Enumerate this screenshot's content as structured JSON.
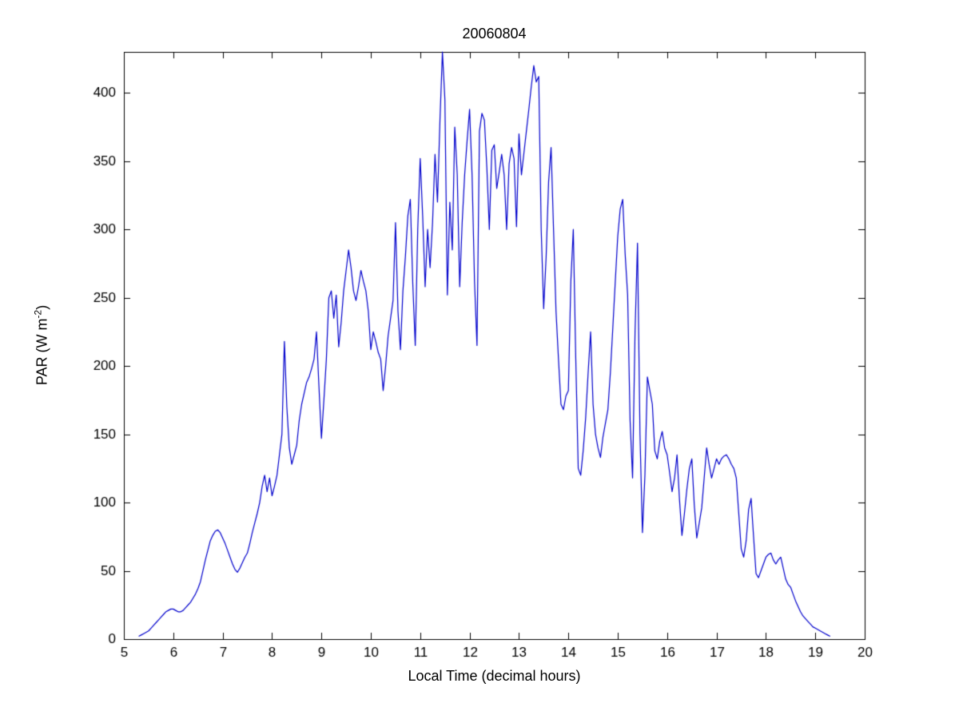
{
  "chart_data": {
    "type": "line",
    "title": "20060804",
    "xlabel": "Local Time (decimal hours)",
    "ylabel": "PAR (W m⁻²)",
    "ylabel_parts": {
      "base": "PAR (W m",
      "sup": "-2",
      "close": ")"
    },
    "xlim": [
      5,
      20
    ],
    "ylim": [
      0,
      430
    ],
    "xticks": [
      5,
      6,
      7,
      8,
      9,
      10,
      11,
      12,
      13,
      14,
      15,
      16,
      17,
      18,
      19,
      20
    ],
    "yticks": [
      0,
      50,
      100,
      150,
      200,
      250,
      300,
      350,
      400
    ],
    "grid": false,
    "legend": null,
    "line_color": "#0000CC",
    "axis_color": "#000000",
    "background_color": "#ffffff",
    "series": [
      {
        "name": "PAR",
        "x_start": 5.3,
        "x_step": 0.05,
        "values": [
          2,
          3,
          4,
          5,
          6,
          8,
          10,
          12,
          14,
          16,
          18,
          20,
          21,
          22,
          22,
          21,
          20,
          20,
          21,
          23,
          25,
          27,
          30,
          33,
          37,
          42,
          50,
          58,
          65,
          72,
          76,
          79,
          80,
          78,
          74,
          70,
          65,
          60,
          55,
          51,
          49,
          52,
          56,
          60,
          63,
          70,
          78,
          85,
          92,
          100,
          112,
          120,
          108,
          118,
          105,
          112,
          120,
          135,
          150,
          218,
          170,
          140,
          128,
          135,
          142,
          160,
          172,
          180,
          188,
          192,
          198,
          205,
          225,
          185,
          147,
          175,
          205,
          250,
          255,
          235,
          252,
          214,
          232,
          255,
          270,
          285,
          272,
          255,
          248,
          258,
          270,
          262,
          255,
          240,
          212,
          225,
          218,
          210,
          205,
          182,
          200,
          222,
          235,
          248,
          305,
          240,
          212,
          255,
          280,
          310,
          322,
          260,
          215,
          300,
          352,
          310,
          258,
          300,
          272,
          305,
          355,
          320,
          380,
          430,
          395,
          252,
          320,
          285,
          375,
          340,
          258,
          305,
          340,
          365,
          388,
          340,
          262,
          215,
          372,
          385,
          380,
          345,
          300,
          358,
          362,
          330,
          342,
          355,
          340,
          300,
          348,
          360,
          352,
          302,
          370,
          340,
          356,
          372,
          388,
          405,
          420,
          408,
          412,
          300,
          242,
          280,
          335,
          360,
          300,
          240,
          205,
          172,
          168,
          178,
          182,
          262,
          300,
          205,
          125,
          120,
          138,
          162,
          195,
          225,
          172,
          150,
          140,
          133,
          148,
          158,
          168,
          195,
          228,
          262,
          295,
          315,
          322,
          282,
          252,
          160,
          118,
          225,
          290,
          150,
          78,
          120,
          192,
          182,
          172,
          138,
          132,
          145,
          152,
          140,
          135,
          122,
          108,
          118,
          135,
          102,
          76,
          92,
          110,
          125,
          132,
          98,
          74,
          85,
          96,
          118,
          140,
          128,
          118,
          125,
          132,
          128,
          132,
          134,
          135,
          132,
          128,
          125,
          118,
          92,
          66,
          60,
          72,
          95,
          103,
          75,
          48,
          45,
          50,
          55,
          60,
          62,
          63,
          58,
          55,
          58,
          60,
          52,
          44,
          40,
          38,
          33,
          28,
          24,
          20,
          17,
          15,
          13,
          11,
          9,
          8,
          7,
          6,
          5,
          4,
          3,
          2
        ]
      }
    ]
  }
}
